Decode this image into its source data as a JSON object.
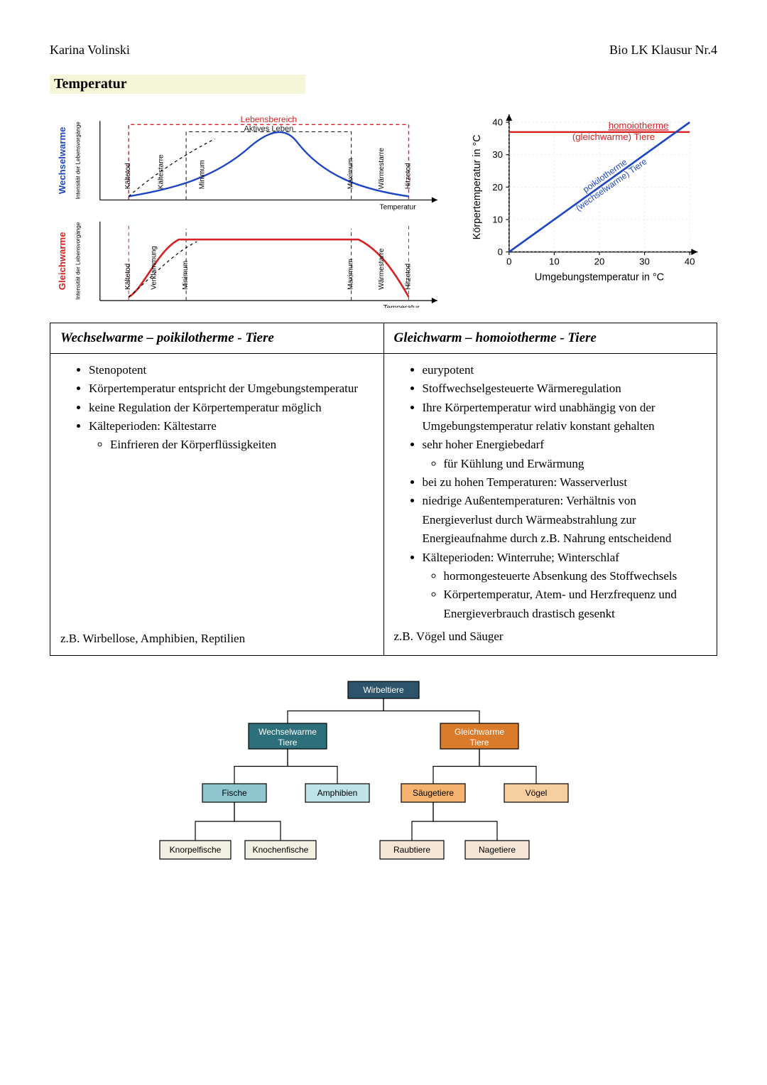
{
  "header": {
    "author": "Karina Volinski",
    "course": "Bio LK Klausur Nr.4"
  },
  "section_title": "Temperatur",
  "tolerance_diagram": {
    "axis_top_y_label": "Wechselwarme",
    "axis_top_y_sub": "Intensität der Lebensvorgänge",
    "axis_bot_y_label": "Gleichwarme",
    "axis_bot_y_sub": "Intensität der Lebensvorgänge",
    "axis_x_label": "Temperatur",
    "top_banner_outer": "Lebensbereich",
    "top_banner_inner": "Aktives Leben",
    "top_color": "#1f47c2",
    "bot_color": "#d62222",
    "markers_top": [
      "Kältetod",
      "Kältestarre",
      "Minimum",
      "Maximum",
      "Wärmestarre",
      "Hitzetod"
    ],
    "markers_bot": [
      "Kältetod",
      "Verklammung",
      "Minimum",
      "Maximum",
      "Wärmestarre",
      "Hitzetod"
    ],
    "dashed_color": "#d62222",
    "guide_color": "#222"
  },
  "linechart": {
    "title_top": "homoiotherme",
    "title_top2": "(gleichwarme) Tiere",
    "title_top_color": "#d62222",
    "diag_label1": "poikilotherme",
    "diag_label2": "(wechselwarme) Tiere",
    "diag_color": "#1f47c2",
    "x_label": "Umgebungstemperatur in °C",
    "y_label": "Körpertemperatur in °C",
    "x_ticks": [
      0,
      10,
      20,
      30,
      40
    ],
    "y_ticks": [
      0,
      10,
      20,
      30,
      40
    ],
    "xlim": [
      0,
      40
    ],
    "ylim": [
      0,
      40
    ],
    "homoio_y": 37,
    "axis_color": "#000"
  },
  "table": {
    "col1_title": "Wechselwarme – poikilotherme - Tiere",
    "col2_title": "Gleichwarm – homoiotherme - Tiere",
    "col1_items": [
      "Stenopotent",
      "Körpertemperatur entspricht der Umgebungstemperatur",
      "keine Regulation der Körpertemperatur möglich",
      "Kälteperioden: Kältestarre"
    ],
    "col1_sub1": "Einfrieren der Körperflüssigkeiten",
    "col2_items": [
      "eurypotent",
      "Stoffwechselgesteuerte Wärmeregulation",
      "Ihre Körpertemperatur wird unabhängig von der Umgebungstemperatur relativ konstant gehalten",
      "sehr hoher Energiebedarf",
      "bei zu hohen Temperaturen: Wasserverlust",
      "niedrige Außentemperaturen: Verhältnis von Energieverlust durch Wärmeabstrahlung zur Energieaufnahme durch z.B. Nahrung entscheidend",
      "Kälteperioden: Winterruhe; Winterschlaf"
    ],
    "col2_sub_energy": "für Kühlung und Erwärmung",
    "col2_sub_k1": "hormongesteuerte Absenkung des Stoffwechsels",
    "col2_sub_k2": "Körpertemperatur, Atem- und Herzfrequenz und Energieverbrauch drastisch gesenkt",
    "col1_example": "z.B. Wirbellose, Amphibien, Reptilien",
    "col2_example": "z.B. Vögel und Säuger"
  },
  "tree": {
    "root": {
      "label": "Wirbeltiere",
      "fill": "#2d546b",
      "text": "#ffffff"
    },
    "l1a": {
      "label1": "Wechselwarme",
      "label2": "Tiere",
      "fill": "#2d6f7a",
      "text": "#ffffff"
    },
    "l1b": {
      "label1": "Gleichwarme",
      "label2": "Tiere",
      "fill": "#d97b2b",
      "text": "#ffffff"
    },
    "l2a": {
      "label": "Fische",
      "fill": "#8fc6cf"
    },
    "l2b": {
      "label": "Amphibien",
      "fill": "#bfe3e8"
    },
    "l2c": {
      "label": "Säugetiere",
      "fill": "#f4b36f"
    },
    "l2d": {
      "label": "Vögel",
      "fill": "#f6cfa0"
    },
    "l3a": {
      "label": "Knorpelfische",
      "fill": "#f2efe3"
    },
    "l3b": {
      "label": "Knochenfische",
      "fill": "#f2efe3"
    },
    "l3c": {
      "label": "Raubtiere",
      "fill": "#f5e5d5"
    },
    "l3d": {
      "label": "Nagetiere",
      "fill": "#f5e5d5"
    },
    "edge_color": "#000"
  }
}
